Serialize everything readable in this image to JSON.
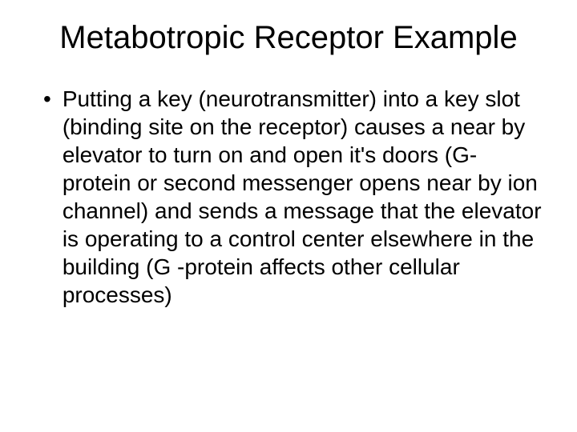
{
  "slide": {
    "title": "Metabotropic Receptor Example",
    "title_fontsize": 40,
    "title_color": "#000000",
    "background_color": "#ffffff",
    "bullets": [
      {
        "marker": "•",
        "text": "Putting a key (neurotransmitter) into a key slot (binding site on the receptor) causes a near by elevator to turn on and open it's doors (G-protein or second messenger opens near by ion channel) and sends a message that the elevator is operating to a control center elsewhere in the building (G -protein affects other cellular processes)"
      }
    ],
    "body_fontsize": 28,
    "body_color": "#000000",
    "font_family": "Arial"
  }
}
